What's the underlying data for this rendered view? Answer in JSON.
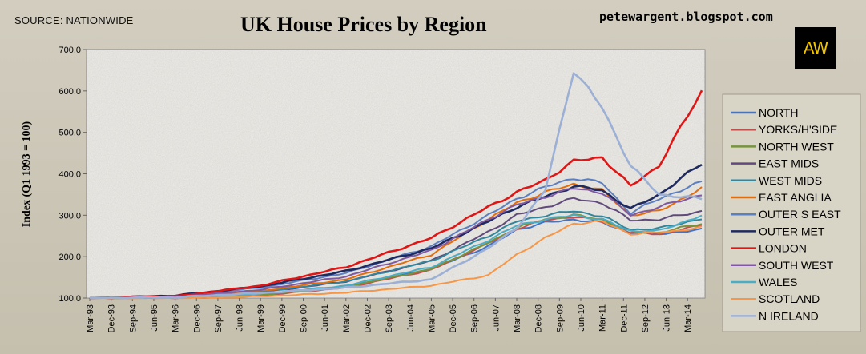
{
  "header": {
    "source": "SOURCE: NATIONWIDE",
    "blog": "petewargent.blogspot.com",
    "logo_text": "AW"
  },
  "chart_data": {
    "type": "line",
    "title": "UK House Prices by Region",
    "xlabel": "",
    "ylabel": "Index (Q1 1993 = 100)",
    "ylim": [
      100,
      700
    ],
    "yticks": [
      "100.0",
      "200.0",
      "300.0",
      "400.0",
      "500.0",
      "600.0",
      "700.0"
    ],
    "grid": false,
    "legend_position": "right",
    "quarters_count": 87,
    "x_tick_labels": [
      "Mar-93",
      "Dec-93",
      "Sep-94",
      "Jun-95",
      "Mar-96",
      "Dec-96",
      "Sep-97",
      "Jun-98",
      "Mar-99",
      "Dec-99",
      "Sep-00",
      "Jun-01",
      "Mar-02",
      "Dec-02",
      "Sep-03",
      "Jun-04",
      "Mar-05",
      "Dec-05",
      "Sep-06",
      "Jun-07",
      "Mar-08",
      "Dec-08",
      "Sep-09",
      "Jun-10",
      "Mar-11",
      "Dec-11",
      "Sep-12",
      "Jun-13",
      "Mar-14"
    ],
    "anchor_quarters": [
      0,
      12,
      24,
      36,
      48,
      56,
      60,
      64,
      68,
      72,
      76,
      80,
      86
    ],
    "series": [
      {
        "name": "NORTH",
        "color": "#4472c4",
        "anchors": [
          100,
          101,
          108,
          128,
          170,
          225,
          265,
          282,
          290,
          282,
          258,
          255,
          265
        ]
      },
      {
        "name": "YORKS/H'SIDE",
        "color": "#c0504d",
        "anchors": [
          100,
          100,
          106,
          125,
          168,
          232,
          268,
          288,
          297,
          285,
          258,
          255,
          275
        ]
      },
      {
        "name": "NORTH WEST",
        "color": "#77933c",
        "anchors": [
          100,
          101,
          107,
          127,
          170,
          233,
          270,
          290,
          300,
          290,
          260,
          258,
          280
        ]
      },
      {
        "name": "EAST MIDS",
        "color": "#604a7b",
        "anchors": [
          100,
          102,
          113,
          140,
          190,
          260,
          300,
          320,
          340,
          330,
          288,
          290,
          310
        ]
      },
      {
        "name": "WEST MIDS",
        "color": "#31859c",
        "anchors": [
          100,
          103,
          115,
          140,
          190,
          250,
          285,
          300,
          310,
          298,
          265,
          268,
          292
        ]
      },
      {
        "name": "EAST ANGLIA",
        "color": "#e46c0a",
        "anchors": [
          100,
          103,
          117,
          145,
          205,
          290,
          330,
          355,
          375,
          360,
          300,
          310,
          365
        ]
      },
      {
        "name": "OUTER S EAST",
        "color": "#5b7fc0",
        "anchors": [
          100,
          105,
          125,
          160,
          225,
          300,
          340,
          368,
          390,
          378,
          305,
          340,
          380
        ]
      },
      {
        "name": "OUTER MET",
        "color": "#1f2a60",
        "anchors": [
          100,
          106,
          128,
          165,
          220,
          285,
          320,
          345,
          370,
          360,
          315,
          350,
          425
        ]
      },
      {
        "name": "LONDON",
        "color": "#e01515",
        "anchors": [
          100,
          104,
          130,
          175,
          245,
          320,
          355,
          385,
          430,
          440,
          370,
          420,
          600
        ]
      },
      {
        "name": "SOUTH WEST",
        "color": "#7f5aa2",
        "anchors": [
          100,
          103,
          120,
          152,
          215,
          290,
          325,
          345,
          365,
          355,
          300,
          320,
          350
        ]
      },
      {
        "name": "WALES",
        "color": "#4bacc6",
        "anchors": [
          100,
          101,
          110,
          130,
          175,
          240,
          275,
          290,
          300,
          290,
          262,
          262,
          300
        ]
      },
      {
        "name": "SCOTLAND",
        "color": "#f79646",
        "anchors": [
          100,
          100,
          104,
          113,
          130,
          155,
          205,
          245,
          280,
          285,
          255,
          258,
          270
        ]
      },
      {
        "name": "N IRELAND",
        "color": "#9cb0d6",
        "anchors": [
          100,
          102,
          112,
          125,
          145,
          220,
          270,
          360,
          650,
          560,
          420,
          350,
          340
        ]
      }
    ]
  }
}
